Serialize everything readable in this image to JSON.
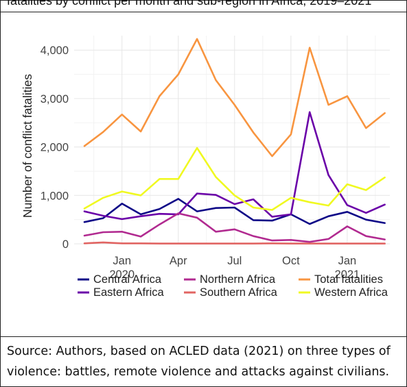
{
  "figure": {
    "header_partial": "fatalities by conflict per month and sub-region in Africa, 2019–2021",
    "caption": "Source: Authors, based on ACLED data (2021) on three types of violence: battles, remote violence and attacks against civilians."
  },
  "chart_data": {
    "type": "line",
    "title": "",
    "xlabel": "",
    "ylabel": "Number of conflict fatalities",
    "ylim": [
      0,
      4300
    ],
    "yticks": [
      0,
      1000,
      2000,
      3000,
      4000
    ],
    "ytick_labels": [
      "0",
      "1,000",
      "2,000",
      "3,000",
      "4,000"
    ],
    "x": [
      "2019-11",
      "2019-12",
      "2020-01",
      "2020-02",
      "2020-03",
      "2020-04",
      "2020-05",
      "2020-06",
      "2020-07",
      "2020-08",
      "2020-09",
      "2020-10",
      "2020-11",
      "2020-12",
      "2021-01",
      "2021-02",
      "2021-03"
    ],
    "xticks": [
      {
        "at": "2020-01",
        "line1": "Jan",
        "line2": "2020"
      },
      {
        "at": "2020-04",
        "line1": "Apr",
        "line2": ""
      },
      {
        "at": "2020-07",
        "line1": "Jul",
        "line2": ""
      },
      {
        "at": "2020-10",
        "line1": "Oct",
        "line2": ""
      },
      {
        "at": "2021-01",
        "line1": "Jan",
        "line2": "2021"
      }
    ],
    "grid": true,
    "legend_position": "bottom",
    "series": [
      {
        "name": "Central Africa",
        "color": "#0d0887",
        "values": [
          450,
          530,
          830,
          610,
          720,
          930,
          670,
          740,
          750,
          490,
          480,
          610,
          410,
          570,
          660,
          500,
          430
        ]
      },
      {
        "name": "Eastern Africa",
        "color": "#6a00a8",
        "values": [
          670,
          580,
          510,
          570,
          620,
          610,
          1040,
          1010,
          820,
          920,
          560,
          610,
          2720,
          1420,
          800,
          640,
          810
        ]
      },
      {
        "name": "Northern Africa",
        "color": "#b12a90",
        "values": [
          170,
          240,
          250,
          150,
          400,
          630,
          540,
          250,
          300,
          160,
          70,
          80,
          40,
          100,
          360,
          160,
          90
        ]
      },
      {
        "name": "Southern Africa",
        "color": "#e16462",
        "values": [
          10,
          30,
          10,
          10,
          5,
          5,
          5,
          5,
          5,
          5,
          10,
          5,
          5,
          5,
          5,
          5,
          5
        ]
      },
      {
        "name": "Total fatalities",
        "color": "#f89540",
        "values": [
          2020,
          2310,
          2670,
          2320,
          3050,
          3500,
          4230,
          3380,
          2870,
          2300,
          1810,
          2260,
          4050,
          2870,
          3050,
          2390,
          2700
        ]
      },
      {
        "name": "Western Africa",
        "color": "#f0f921",
        "values": [
          730,
          950,
          1080,
          1000,
          1340,
          1340,
          1980,
          1380,
          1000,
          750,
          700,
          950,
          860,
          790,
          1230,
          1110,
          1370
        ]
      }
    ],
    "legend_rows": [
      [
        "Central Africa",
        "Northern Africa",
        "Total fatalities"
      ],
      [
        "Eastern Africa",
        "Southern Africa",
        "Western Africa"
      ]
    ]
  }
}
